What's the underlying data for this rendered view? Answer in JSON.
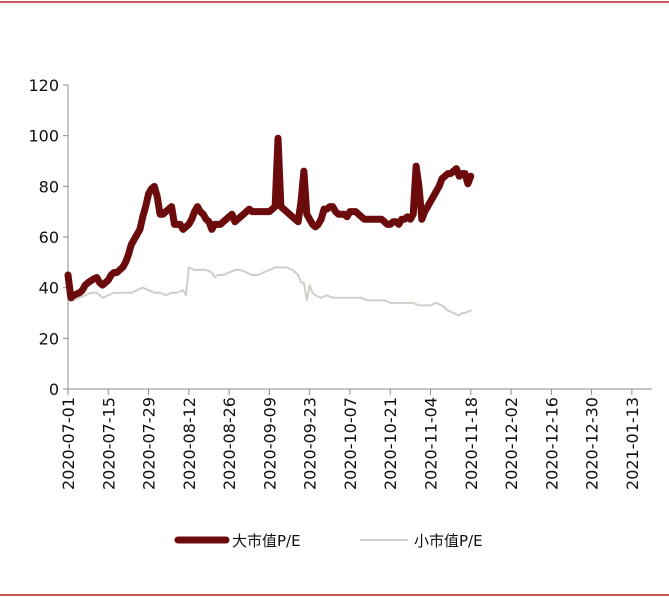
{
  "colors": {
    "frame_line": "#b22222",
    "axis": "#8c8c8c",
    "large_cap": "#6b0b0b",
    "small_cap": "#cfcfc7"
  },
  "chart_data": {
    "type": "line",
    "title": "",
    "xlabel": "",
    "ylabel": "",
    "ylim": [
      0,
      120
    ],
    "y_ticks": [
      "0",
      "20",
      "40",
      "60",
      "80",
      "100",
      "120"
    ],
    "x_start": "2020-07-01",
    "x_end": "2021-01-20",
    "x_ticks": [
      "2020-07-01",
      "2020-07-15",
      "2020-07-29",
      "2020-08-12",
      "2020-08-26",
      "2020-09-09",
      "2020-09-23",
      "2020-10-07",
      "2020-10-21",
      "2020-11-04",
      "2020-11-18",
      "2020-12-02",
      "2020-12-16",
      "2020-12-30",
      "2021-01-13"
    ],
    "grid": false,
    "legend_position": "bottom",
    "series": [
      {
        "name": "大市值P/E",
        "color_key": "large_cap",
        "line": "thick",
        "points": [
          [
            0,
            45
          ],
          [
            1,
            36
          ],
          [
            2,
            37
          ],
          [
            4,
            38
          ],
          [
            5,
            39
          ],
          [
            6,
            41
          ],
          [
            7,
            42
          ],
          [
            9,
            43.5
          ],
          [
            10,
            44
          ],
          [
            11,
            42
          ],
          [
            12,
            41
          ],
          [
            14,
            43
          ],
          [
            15,
            45
          ],
          [
            16,
            46
          ],
          [
            17,
            46
          ],
          [
            18,
            47
          ],
          [
            19,
            48
          ],
          [
            20,
            50
          ],
          [
            21,
            53
          ],
          [
            22,
            57
          ],
          [
            23,
            59
          ],
          [
            25,
            63
          ],
          [
            26,
            68
          ],
          [
            27,
            72
          ],
          [
            28,
            77
          ],
          [
            29,
            79
          ],
          [
            30,
            80
          ],
          [
            31,
            76
          ],
          [
            32,
            69
          ],
          [
            33,
            69
          ],
          [
            34,
            70
          ],
          [
            35,
            71
          ],
          [
            36,
            72
          ],
          [
            37,
            65
          ],
          [
            38,
            65
          ],
          [
            39,
            65
          ],
          [
            40,
            63
          ],
          [
            41,
            64
          ],
          [
            42,
            65
          ],
          [
            43,
            67
          ],
          [
            44,
            70
          ],
          [
            45,
            72
          ],
          [
            46,
            70
          ],
          [
            47,
            69
          ],
          [
            48,
            67
          ],
          [
            49,
            66
          ],
          [
            50,
            63
          ],
          [
            51,
            65
          ],
          [
            52,
            65
          ],
          [
            53,
            65
          ],
          [
            54,
            66
          ],
          [
            55,
            67
          ],
          [
            56,
            68
          ],
          [
            57,
            69
          ],
          [
            58,
            66
          ],
          [
            59,
            67
          ],
          [
            60,
            68
          ],
          [
            61,
            69
          ],
          [
            62,
            70
          ],
          [
            63,
            71
          ],
          [
            64,
            70
          ],
          [
            66,
            70
          ],
          [
            68,
            70
          ],
          [
            70,
            70
          ],
          [
            71,
            71
          ],
          [
            72,
            72
          ],
          [
            73,
            99
          ],
          [
            74,
            72
          ],
          [
            75,
            71
          ],
          [
            76,
            70
          ],
          [
            77,
            69
          ],
          [
            78,
            68
          ],
          [
            79,
            67
          ],
          [
            80,
            66
          ],
          [
            81,
            74
          ],
          [
            82,
            86
          ],
          [
            83,
            69
          ],
          [
            84,
            67
          ],
          [
            85,
            65
          ],
          [
            86,
            64
          ],
          [
            87,
            65
          ],
          [
            88,
            67
          ],
          [
            89,
            71
          ],
          [
            90,
            71
          ],
          [
            91,
            72
          ],
          [
            92,
            72
          ],
          [
            93,
            70
          ],
          [
            94,
            69
          ],
          [
            95,
            69
          ],
          [
            96,
            69
          ],
          [
            97,
            68
          ],
          [
            98,
            70
          ],
          [
            99,
            70
          ],
          [
            100,
            70
          ],
          [
            101,
            69
          ],
          [
            102,
            68
          ],
          [
            103,
            67
          ],
          [
            104,
            67
          ],
          [
            105,
            67
          ],
          [
            106,
            67
          ],
          [
            107,
            67
          ],
          [
            108,
            67
          ],
          [
            109,
            67
          ],
          [
            110,
            66
          ],
          [
            111,
            65
          ],
          [
            112,
            65
          ],
          [
            113,
            66
          ],
          [
            114,
            66
          ],
          [
            115,
            65
          ],
          [
            116,
            67
          ],
          [
            117,
            67
          ],
          [
            118,
            68
          ],
          [
            119,
            67
          ],
          [
            120,
            69
          ],
          [
            121,
            88
          ],
          [
            122,
            80
          ],
          [
            123,
            67
          ],
          [
            124,
            70
          ],
          [
            125,
            72
          ],
          [
            126,
            74
          ],
          [
            127,
            76
          ],
          [
            128,
            78
          ],
          [
            129,
            80
          ],
          [
            130,
            83
          ],
          [
            131,
            84
          ],
          [
            132,
            85
          ],
          [
            133,
            85
          ],
          [
            134,
            86
          ],
          [
            135,
            87
          ],
          [
            136,
            84
          ],
          [
            137,
            85
          ],
          [
            138,
            85
          ],
          [
            139,
            81
          ],
          [
            140,
            84
          ]
        ]
      },
      {
        "name": "小市值P/E",
        "color_key": "small_cap",
        "line": "thin",
        "points": [
          [
            0,
            35
          ],
          [
            2,
            35
          ],
          [
            4,
            36
          ],
          [
            6,
            37
          ],
          [
            8,
            38
          ],
          [
            10,
            38
          ],
          [
            11,
            37
          ],
          [
            12,
            36
          ],
          [
            14,
            37
          ],
          [
            16,
            38
          ],
          [
            18,
            38
          ],
          [
            20,
            38
          ],
          [
            22,
            38
          ],
          [
            24,
            39
          ],
          [
            26,
            40
          ],
          [
            28,
            39
          ],
          [
            30,
            38
          ],
          [
            32,
            38
          ],
          [
            34,
            37
          ],
          [
            36,
            38
          ],
          [
            38,
            38
          ],
          [
            40,
            39
          ],
          [
            41,
            37
          ],
          [
            42,
            48
          ],
          [
            43,
            47.5
          ],
          [
            44,
            47
          ],
          [
            46,
            47
          ],
          [
            48,
            47
          ],
          [
            50,
            46
          ],
          [
            51,
            44
          ],
          [
            52,
            45
          ],
          [
            54,
            45
          ],
          [
            56,
            46
          ],
          [
            58,
            47
          ],
          [
            60,
            47
          ],
          [
            62,
            46
          ],
          [
            64,
            45
          ],
          [
            66,
            45
          ],
          [
            68,
            46
          ],
          [
            70,
            47
          ],
          [
            72,
            48
          ],
          [
            74,
            48
          ],
          [
            76,
            48
          ],
          [
            78,
            47
          ],
          [
            80,
            45
          ],
          [
            81,
            42
          ],
          [
            82,
            42
          ],
          [
            83,
            35
          ],
          [
            84,
            41
          ],
          [
            85,
            38
          ],
          [
            86,
            37
          ],
          [
            88,
            36
          ],
          [
            90,
            37
          ],
          [
            92,
            36
          ],
          [
            94,
            36
          ],
          [
            96,
            36
          ],
          [
            98,
            36
          ],
          [
            100,
            36
          ],
          [
            102,
            36
          ],
          [
            104,
            35
          ],
          [
            106,
            35
          ],
          [
            108,
            35
          ],
          [
            110,
            35
          ],
          [
            112,
            34
          ],
          [
            114,
            34
          ],
          [
            116,
            34
          ],
          [
            118,
            34
          ],
          [
            120,
            34
          ],
          [
            122,
            33
          ],
          [
            124,
            33
          ],
          [
            126,
            33
          ],
          [
            128,
            34
          ],
          [
            130,
            33
          ],
          [
            132,
            31
          ],
          [
            134,
            30
          ],
          [
            136,
            29
          ],
          [
            137,
            30
          ],
          [
            138,
            30
          ],
          [
            140,
            31
          ]
        ]
      }
    ]
  }
}
